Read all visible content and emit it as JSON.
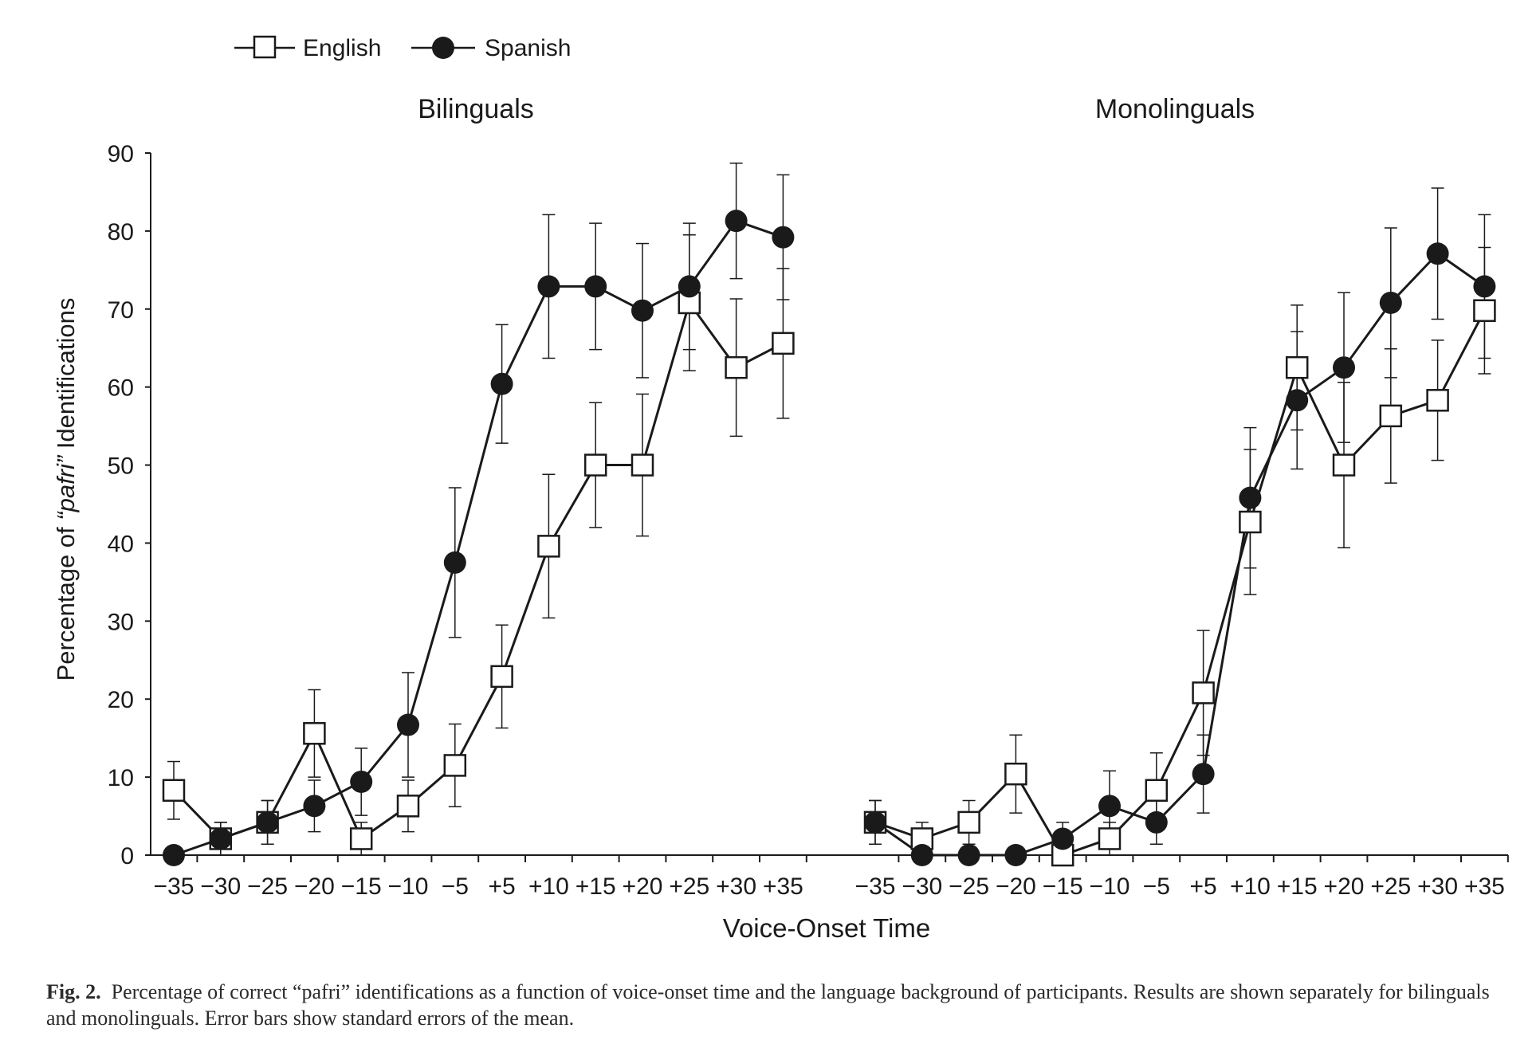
{
  "legend": {
    "items": [
      {
        "label": "English",
        "marker": "open-square"
      },
      {
        "label": "Spanish",
        "marker": "filled-circle"
      }
    ]
  },
  "chart_data": [
    {
      "type": "line",
      "title": "Bilinguals",
      "ylabel_prefix": "Percentage of ",
      "ylabel_italic": "“pafri”",
      "ylabel_suffix": " Identifications",
      "ylim": [
        0,
        90
      ],
      "yticks": [
        "0",
        "10",
        "20",
        "30",
        "40",
        "50",
        "60",
        "70",
        "80",
        "90"
      ],
      "categories": [
        "−35",
        "−30",
        "−25",
        "−20",
        "−15",
        "−10",
        "−5",
        "+5",
        "+10",
        "+15",
        "+20",
        "+25",
        "+30",
        "+35"
      ],
      "series": [
        {
          "name": "English",
          "marker": "open-square",
          "values": [
            8.3,
            2.1,
            4.2,
            15.6,
            2.1,
            6.3,
            11.5,
            22.9,
            39.6,
            50.0,
            50.0,
            70.8,
            62.5,
            65.6
          ],
          "errors": [
            3.7,
            2.1,
            2.8,
            5.6,
            2.1,
            3.3,
            5.3,
            6.6,
            9.2,
            8.0,
            9.1,
            8.7,
            8.8,
            9.6
          ]
        },
        {
          "name": "Spanish",
          "marker": "filled-circle",
          "values": [
            0,
            2.1,
            4.2,
            6.3,
            9.4,
            16.7,
            37.5,
            60.4,
            72.9,
            72.9,
            69.8,
            72.9,
            81.3,
            79.2
          ],
          "errors": [
            0,
            2.1,
            2.8,
            3.3,
            4.3,
            6.7,
            9.6,
            7.6,
            9.2,
            8.1,
            8.6,
            8.1,
            7.4,
            8.0
          ]
        }
      ]
    },
    {
      "type": "line",
      "title": "Monolinguals",
      "ylim": [
        0,
        90
      ],
      "categories": [
        "−35",
        "−30",
        "−25",
        "−20",
        "−15",
        "−10",
        "−5",
        "+5",
        "+10",
        "+15",
        "+20",
        "+25",
        "+30",
        "+35"
      ],
      "series": [
        {
          "name": "English",
          "marker": "open-square",
          "values": [
            4.2,
            2.1,
            4.2,
            10.4,
            0,
            2.1,
            8.3,
            20.8,
            42.7,
            62.5,
            50.0,
            56.3,
            58.3,
            69.8
          ],
          "errors": [
            2.8,
            2.1,
            2.8,
            5.0,
            0,
            2.1,
            4.8,
            8.0,
            9.3,
            8.0,
            10.6,
            8.6,
            7.7,
            8.1
          ]
        },
        {
          "name": "Spanish",
          "marker": "filled-circle",
          "values": [
            4.2,
            0,
            0,
            0,
            2.1,
            6.3,
            4.2,
            10.4,
            45.8,
            58.3,
            62.5,
            70.8,
            77.1,
            72.9
          ],
          "errors": [
            2.8,
            0,
            0,
            0,
            2.1,
            4.5,
            2.8,
            5.0,
            9.0,
            8.8,
            9.6,
            9.6,
            8.4,
            9.2
          ]
        }
      ]
    }
  ],
  "xlabel": "Voice-Onset Time",
  "caption": {
    "label": "Fig. 2.",
    "text": "Percentage of correct “pafri” identifications as a function of voice-onset time and the language background of participants. Results are shown separately for bilinguals and monolinguals. Error bars show standard errors of the mean."
  }
}
